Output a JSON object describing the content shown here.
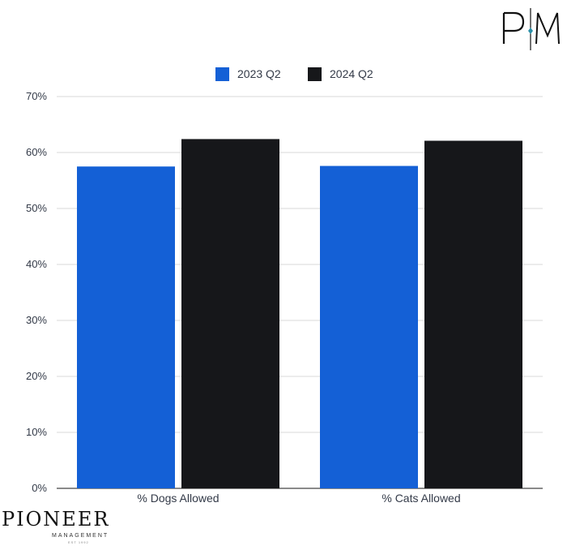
{
  "chart_data": {
    "type": "bar",
    "categories": [
      "% Dogs Allowed",
      "% Cats Allowed"
    ],
    "series": [
      {
        "name": "2023 Q2",
        "color": "#1460d6",
        "values": [
          57.5,
          57.6
        ]
      },
      {
        "name": "2024 Q2",
        "color": "#16171a",
        "values": [
          62.4,
          62.1
        ]
      }
    ],
    "ylim": [
      0,
      70
    ],
    "yticks": [
      "0%",
      "10%",
      "20%",
      "30%",
      "40%",
      "50%",
      "60%",
      "70%"
    ],
    "ytick_values": [
      0,
      10,
      20,
      30,
      40,
      50,
      60,
      70
    ],
    "grid": true,
    "legend_position": "top-center",
    "title": "",
    "xlabel": "",
    "ylabel": ""
  },
  "logos": {
    "monogram": "PM",
    "brand_name": "PIONEER",
    "brand_sub": "MANAGEMENT",
    "brand_est": "EST 1992"
  }
}
